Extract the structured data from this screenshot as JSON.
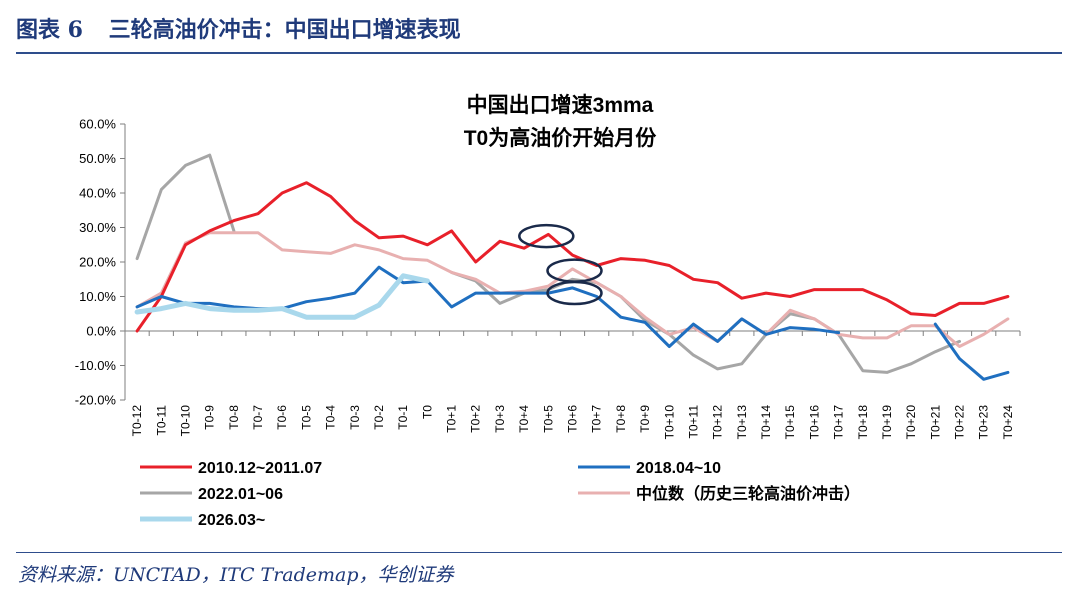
{
  "figure": {
    "label": "图表 6",
    "title": "三轮高油价冲击：中国出口增速表现",
    "source": "资料来源：UNCTAD，ITC Trademap，华创证券"
  },
  "chart_data": {
    "type": "line",
    "title_line1": "中国出口增速3mma",
    "title_line2": "T0为高油价开始月份",
    "ylim": [
      -20,
      60
    ],
    "yticks": [
      "60.0%",
      "50.0%",
      "40.0%",
      "30.0%",
      "20.0%",
      "10.0%",
      "0.0%",
      "-10.0%",
      "-20.0%"
    ],
    "x": [
      "T0-12",
      "T0-11",
      "T0-10",
      "T0-9",
      "T0-8",
      "T0-7",
      "T0-6",
      "T0-5",
      "T0-4",
      "T0-3",
      "T0-2",
      "T0-1",
      "T0",
      "T0+1",
      "T0+2",
      "T0+3",
      "T0+4",
      "T0+5",
      "T0+6",
      "T0+7",
      "T0+8",
      "T0+9",
      "T0+10",
      "T0+11",
      "T0+12",
      "T0+13",
      "T0+14",
      "T0+15",
      "T0+16",
      "T0+17",
      "T0+18",
      "T0+19",
      "T0+20",
      "T0+21",
      "T0+22",
      "T0+23",
      "T0+24"
    ],
    "series": [
      {
        "name": "2010.12~2011.07",
        "color": "#e8202a",
        "width": 3,
        "values": [
          0,
          10,
          25,
          29,
          32,
          34,
          40,
          43,
          39,
          32,
          27,
          27.5,
          25,
          29,
          20,
          26,
          24,
          28,
          22,
          19,
          21,
          20.5,
          19,
          15,
          14,
          9.5,
          11,
          10,
          12,
          12,
          12,
          9,
          5,
          4.5,
          8,
          8,
          10
        ]
      },
      {
        "name": "2018.04~10",
        "color": "#1f6fc0",
        "width": 3,
        "values": [
          7,
          10,
          8,
          8,
          7,
          6.5,
          6.5,
          8.5,
          9.5,
          11,
          18.5,
          14,
          14.5,
          7,
          11,
          11,
          11,
          11,
          12.5,
          10,
          4,
          2.5,
          -4.5,
          2,
          -3,
          3.5,
          -1,
          1,
          0.5,
          -0.5,
          null,
          null,
          null,
          2,
          -8,
          -14,
          -12
        ]
      },
      {
        "name": "2022.01~06",
        "color": "#a6a6a6",
        "width": 3,
        "values": [
          21,
          41,
          48,
          51,
          29,
          null,
          null,
          null,
          null,
          null,
          null,
          null,
          null,
          17,
          14.5,
          8,
          11,
          12,
          15,
          14,
          10,
          3,
          -1,
          -7,
          -11,
          -9.5,
          -1,
          5,
          3.5,
          -1,
          -11.5,
          -12,
          -9.5,
          -6,
          -3,
          null,
          null
        ]
      },
      {
        "name": "中位数（历史三轮高油价冲击）",
        "color": "#e8b0b0",
        "width": 3,
        "values": [
          7,
          11,
          25.5,
          28.5,
          28.5,
          28.5,
          23.5,
          23,
          22.5,
          25,
          23.5,
          21,
          20.5,
          17,
          15,
          11,
          11.5,
          13,
          18,
          14,
          10,
          4,
          -1,
          1,
          -3,
          3.5,
          -1,
          6,
          3.5,
          -1,
          -2,
          -2,
          1.5,
          1.5,
          -4.5,
          -1,
          3.5
        ]
      },
      {
        "name": "2026.03~",
        "color": "#a9d8ec",
        "width": 5,
        "values": [
          5.5,
          6.5,
          8,
          6.5,
          6,
          6,
          6.5,
          4,
          4,
          4,
          7.5,
          16,
          14.5,
          null,
          null,
          null,
          null,
          null,
          null,
          null,
          null,
          null,
          null,
          null,
          null,
          null,
          null,
          null,
          null,
          null,
          null,
          null,
          null,
          null,
          null,
          null,
          null
        ]
      }
    ],
    "annotations": [
      {
        "shape": "ellipse",
        "x": "T0+5",
        "y": 27.5
      },
      {
        "shape": "ellipse",
        "x": "T0+6",
        "y": 17.5
      },
      {
        "shape": "ellipse",
        "x": "T0+6",
        "y": 11
      }
    ],
    "grid": false
  }
}
